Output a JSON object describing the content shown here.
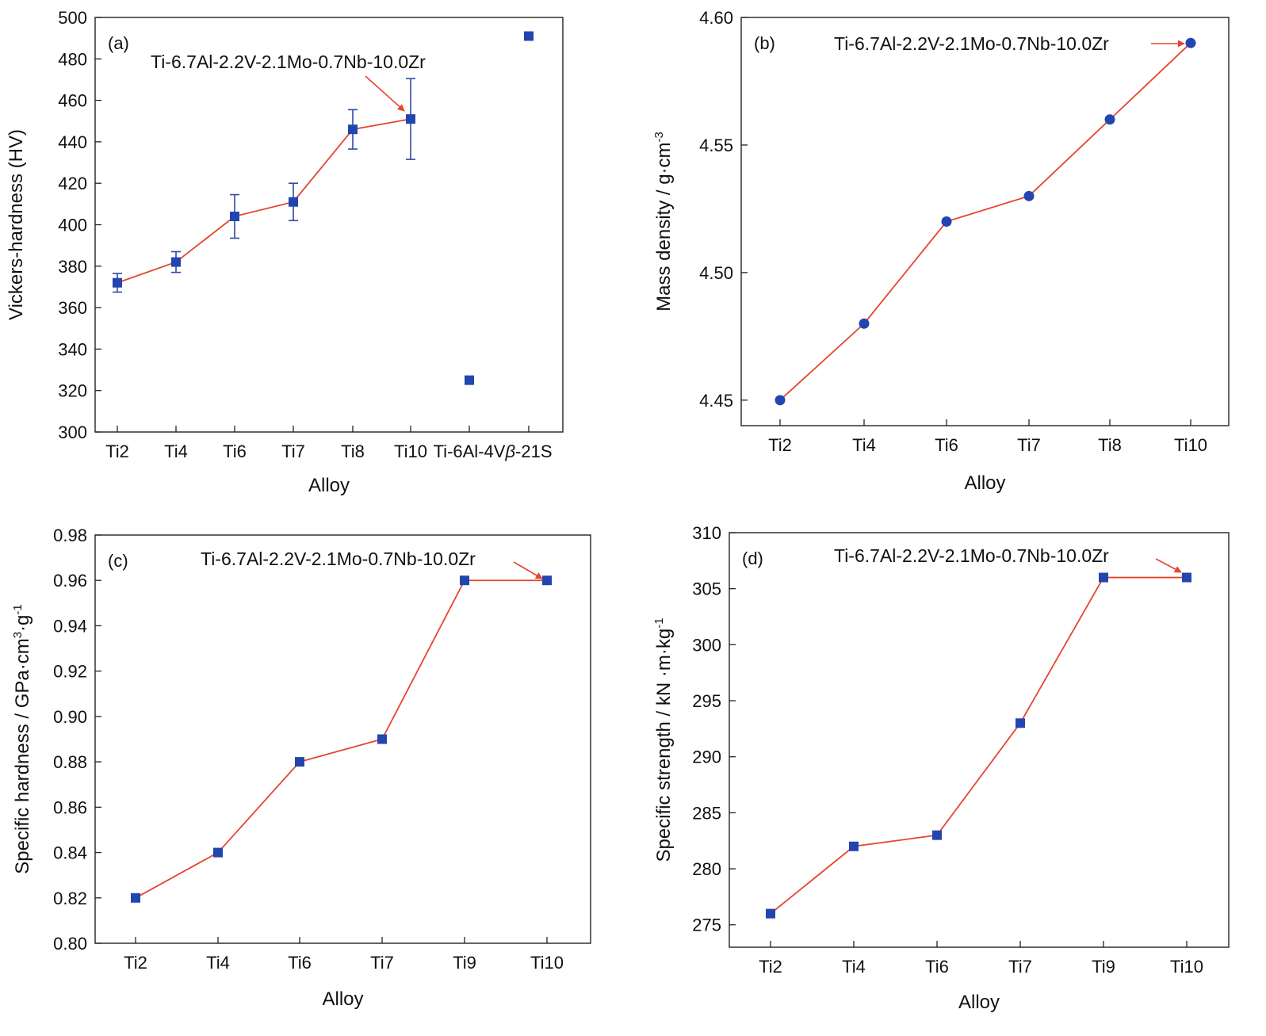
{
  "figure": {
    "style": {
      "line_color": "#e5452f",
      "marker_color": "#2245b0",
      "errorbar_color": "#2e4aa6",
      "arrow_color": "#e5452f",
      "frame_color": "#222222"
    }
  },
  "chart_data": [
    {
      "id": "a",
      "type": "line",
      "panel_label": "(a)",
      "title": "",
      "xlabel": "Alloy",
      "ylabel": "Vickers-hardness (HV)",
      "categories": [
        "Ti2",
        "Ti4",
        "Ti6",
        "Ti7",
        "Ti8",
        "Ti10",
        "Ti-6Al-4V",
        "β-21S"
      ],
      "category_labels": [
        {
          "prefix": "",
          "italic": "",
          "suffix": "Ti2"
        },
        {
          "prefix": "",
          "italic": "",
          "suffix": "Ti4"
        },
        {
          "prefix": "",
          "italic": "",
          "suffix": "Ti6"
        },
        {
          "prefix": "",
          "italic": "",
          "suffix": "Ti7"
        },
        {
          "prefix": "",
          "italic": "",
          "suffix": "Ti8"
        },
        {
          "prefix": "",
          "italic": "",
          "suffix": "Ti10"
        },
        {
          "prefix": "",
          "italic": "",
          "suffix": "Ti-6Al-4V"
        },
        {
          "prefix": "",
          "italic": "β",
          "suffix": "-21S"
        }
      ],
      "ylim": [
        300,
        500
      ],
      "yticks": [
        300,
        320,
        340,
        360,
        380,
        400,
        420,
        440,
        460,
        480,
        500
      ],
      "ytick_decimals": 0,
      "marker": "square",
      "grid": false,
      "series": [
        {
          "values": [
            372,
            382,
            404,
            411,
            446,
            451,
            null,
            null
          ],
          "errors": [
            4.5,
            5,
            10.5,
            9,
            9.5,
            19.5,
            null,
            null
          ],
          "connected": true
        },
        {
          "values": [
            null,
            null,
            null,
            null,
            null,
            null,
            325,
            491
          ],
          "connected": false
        }
      ],
      "annotation": {
        "text": "Ti-6.7Al-2.2V-2.1Mo-0.7Nb-10.0Zr",
        "target_category": "Ti10"
      }
    },
    {
      "id": "b",
      "type": "line",
      "panel_label": "(b)",
      "title": "",
      "xlabel": "Alloy",
      "ylabel": "Mass density / g·cm",
      "ylabel_sup": "-3",
      "ylabel_tail": "",
      "categories": [
        "Ti2",
        "Ti4",
        "Ti6",
        "Ti7",
        "Ti8",
        "Ti10"
      ],
      "ylim": [
        4.44,
        4.6
      ],
      "yticks": [
        4.45,
        4.5,
        4.55,
        4.6
      ],
      "ytick_decimals": 2,
      "marker": "circle",
      "grid": false,
      "series": [
        {
          "values": [
            4.45,
            4.48,
            4.52,
            4.53,
            4.56,
            4.59
          ],
          "connected": true
        }
      ],
      "annotation": {
        "text": "Ti-6.7Al-2.2V-2.1Mo-0.7Nb-10.0Zr",
        "target_category": "Ti10"
      }
    },
    {
      "id": "c",
      "type": "line",
      "panel_label": "(c)",
      "title": "",
      "xlabel": "Alloy",
      "ylabel": "Specific hardness / GPa·cm",
      "ylabel_sup": "3",
      "ylabel_tail": "·g",
      "ylabel_tail_sup": "-1",
      "categories": [
        "Ti2",
        "Ti4",
        "Ti6",
        "Ti7",
        "Ti9",
        "Ti10"
      ],
      "ylim": [
        0.8,
        0.98
      ],
      "yticks": [
        0.8,
        0.82,
        0.84,
        0.86,
        0.88,
        0.9,
        0.92,
        0.94,
        0.96,
        0.98
      ],
      "ytick_decimals": 2,
      "marker": "square",
      "grid": false,
      "series": [
        {
          "values": [
            0.82,
            0.84,
            0.88,
            0.89,
            0.96,
            0.96
          ],
          "connected": true
        }
      ],
      "annotation": {
        "text": "Ti-6.7Al-2.2V-2.1Mo-0.7Nb-10.0Zr",
        "target_category": "Ti10"
      }
    },
    {
      "id": "d",
      "type": "line",
      "panel_label": "(d)",
      "title": "",
      "xlabel": "Alloy",
      "ylabel": "Specific strength / kN ·m·kg",
      "ylabel_sup": "-1",
      "ylabel_tail": "",
      "categories": [
        "Ti2",
        "Ti4",
        "Ti6",
        "Ti7",
        "Ti9",
        "Ti10"
      ],
      "ylim": [
        273,
        310
      ],
      "yticks": [
        275,
        280,
        285,
        290,
        295,
        300,
        305,
        310
      ],
      "ytick_decimals": 0,
      "marker": "square",
      "grid": false,
      "series": [
        {
          "values": [
            276,
            282,
            283,
            293,
            306,
            306
          ],
          "connected": true
        }
      ],
      "annotation": {
        "text": "Ti-6.7Al-2.2V-2.1Mo-0.7Nb-10.0Zr",
        "target_category": "Ti10"
      }
    }
  ]
}
